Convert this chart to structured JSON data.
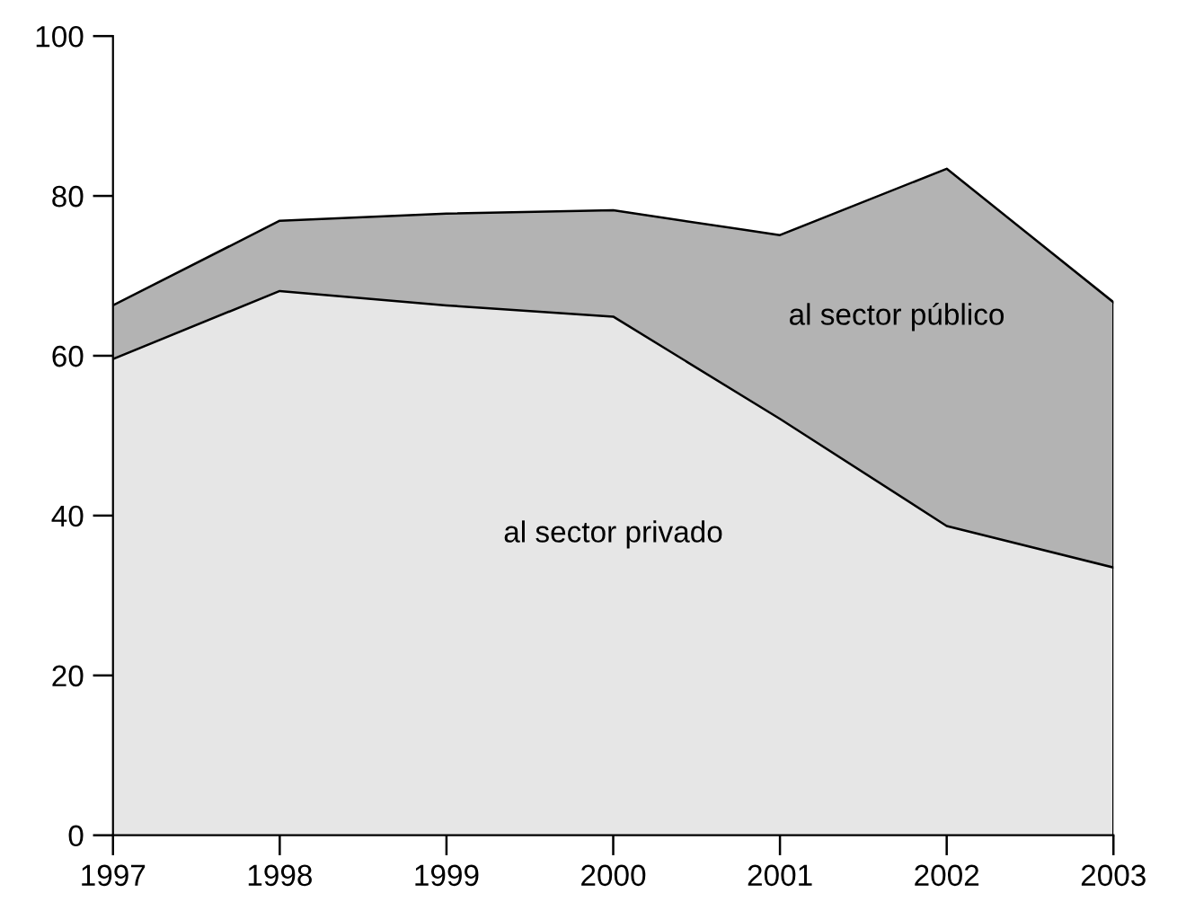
{
  "chart_data": {
    "type": "area",
    "stacked": true,
    "x": [
      1997,
      1998,
      1999,
      2000,
      2001,
      2002,
      2003
    ],
    "series": [
      {
        "name": "al sector privado",
        "color": "#e6e6e6",
        "values": [
          59.6,
          68.1,
          66.3,
          64.9,
          52.1,
          38.7,
          33.5
        ]
      },
      {
        "name": "al sector público",
        "color": "#b3b3b3",
        "values": [
          6.7,
          8.8,
          11.5,
          13.3,
          23.0,
          44.7,
          33.2
        ]
      }
    ],
    "xlim": [
      1997,
      2003
    ],
    "xticks": [
      1997,
      1998,
      1999,
      2000,
      2001,
      2002,
      2003
    ],
    "ylim": [
      0,
      100
    ],
    "yticks": [
      0,
      20,
      40,
      60,
      80,
      100
    ],
    "grid": false,
    "legend": false
  }
}
